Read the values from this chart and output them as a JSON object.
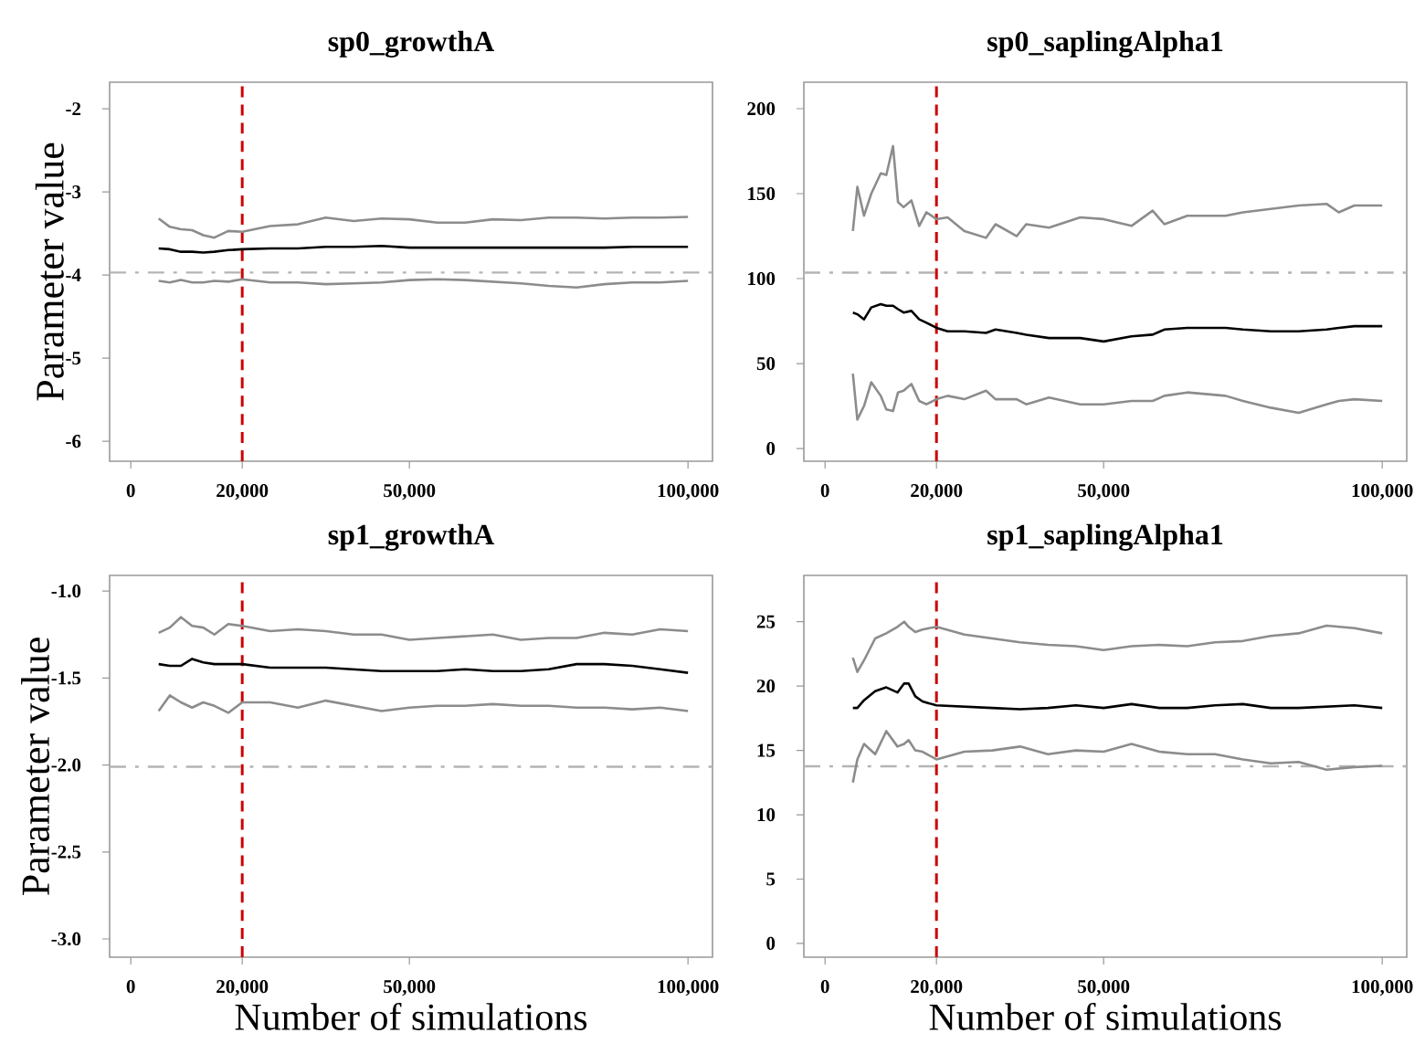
{
  "chart_data": [
    {
      "type": "line",
      "title": "sp0_growthA",
      "ylabel": "Parameter value",
      "x": [
        5000,
        7000,
        9000,
        11000,
        13000,
        15000,
        17500,
        20000,
        25000,
        30000,
        35000,
        40000,
        45000,
        50000,
        55000,
        60000,
        65000,
        70000,
        75000,
        80000,
        85000,
        90000,
        95000,
        100000
      ],
      "series": [
        {
          "color": "#8c8c8c",
          "values": [
            -3.32,
            -3.42,
            -3.45,
            -3.46,
            -3.52,
            -3.55,
            -3.47,
            -3.48,
            -3.41,
            -3.39,
            -3.31,
            -3.35,
            -3.32,
            -3.33,
            -3.37,
            -3.37,
            -3.33,
            -3.34,
            -3.31,
            -3.31,
            -3.32,
            -3.31,
            -3.31,
            -3.3
          ]
        },
        {
          "color": "#000000",
          "values": [
            -3.68,
            -3.69,
            -3.72,
            -3.72,
            -3.73,
            -3.72,
            -3.7,
            -3.69,
            -3.68,
            -3.68,
            -3.66,
            -3.66,
            -3.65,
            -3.67,
            -3.67,
            -3.67,
            -3.67,
            -3.67,
            -3.67,
            -3.67,
            -3.67,
            -3.66,
            -3.66,
            -3.66
          ]
        },
        {
          "color": "#8c8c8c",
          "values": [
            -4.07,
            -4.09,
            -4.06,
            -4.09,
            -4.09,
            -4.07,
            -4.08,
            -4.05,
            -4.09,
            -4.09,
            -4.11,
            -4.1,
            -4.09,
            -4.06,
            -4.05,
            -4.06,
            -4.08,
            -4.1,
            -4.13,
            -4.15,
            -4.11,
            -4.09,
            -4.09,
            -4.07
          ]
        }
      ],
      "xlim": [
        -3800,
        104400
      ],
      "ylim": [
        -6.24,
        -1.68
      ],
      "xticks": [
        0,
        {
          "value": 20000,
          "label": "20,000"
        },
        {
          "value": 50000,
          "label": "50,000"
        },
        {
          "value": 100000,
          "label": "100,000"
        }
      ],
      "yticks": [
        -6,
        -5,
        -4,
        -3,
        -2
      ],
      "ref_lines": [
        {
          "axis": "x",
          "value": 20000,
          "color": "#cc0000",
          "line_style": "dashed"
        },
        {
          "axis": "y",
          "value": -3.97,
          "color": "#b4b4b4",
          "line_style": "dashdot"
        }
      ]
    },
    {
      "type": "line",
      "title": "sp0_saplingAlpha1",
      "x": [
        5000,
        5800,
        7000,
        8300,
        10000,
        11000,
        12200,
        13100,
        14100,
        15500,
        16900,
        18200,
        20000,
        22000,
        25000,
        28900,
        30600,
        34400,
        36100,
        40200,
        45800,
        50000,
        55000,
        58800,
        60900,
        65000,
        71900,
        75000,
        80000,
        85000,
        90000,
        92200,
        95000,
        100000
      ],
      "series": [
        {
          "color": "#8c8c8c",
          "values": [
            128,
            154,
            137,
            150,
            162,
            161,
            178,
            145,
            142,
            146,
            131,
            139,
            135,
            136,
            128,
            124,
            132,
            125,
            132,
            130,
            136,
            135,
            131,
            140,
            132,
            137,
            137,
            139,
            141,
            143,
            144,
            139,
            143,
            143
          ]
        },
        {
          "color": "#000000",
          "values": [
            80,
            79,
            76,
            83,
            85,
            84,
            84,
            82,
            80,
            81,
            76,
            74,
            71,
            69,
            69,
            68,
            70,
            68,
            67,
            65,
            65,
            63,
            66,
            67,
            70,
            71,
            71,
            70,
            69,
            69,
            70,
            71,
            72,
            72
          ]
        },
        {
          "color": "#8c8c8c",
          "values": [
            44,
            17,
            25,
            39,
            31,
            23,
            22,
            33,
            34,
            38,
            28,
            26,
            29,
            31,
            29,
            34,
            29,
            29,
            26,
            30,
            26,
            26,
            28,
            28,
            31,
            33,
            31,
            28,
            24,
            21,
            26,
            28,
            29,
            28
          ]
        }
      ],
      "xlim": [
        -3800,
        104400
      ],
      "ylim": [
        -7.5,
        215.6
      ],
      "xticks": [
        0,
        {
          "value": 20000,
          "label": "20,000"
        },
        {
          "value": 50000,
          "label": "50,000"
        },
        {
          "value": 100000,
          "label": "100,000"
        }
      ],
      "yticks": [
        0,
        50,
        100,
        150,
        200
      ],
      "ref_lines": [
        {
          "axis": "x",
          "value": 20000,
          "color": "#cc0000",
          "line_style": "dashed"
        },
        {
          "axis": "y",
          "value": 103.5,
          "color": "#b4b4b4",
          "line_style": "dashdot"
        }
      ]
    },
    {
      "type": "line",
      "title": "sp1_growthA",
      "ylabel": "Parameter value",
      "xlabel": "Number of simulations",
      "x": [
        5000,
        7000,
        9000,
        11000,
        13000,
        15000,
        17500,
        20000,
        25000,
        30000,
        35000,
        40000,
        45000,
        50000,
        55000,
        60000,
        65000,
        70000,
        75000,
        80000,
        85000,
        90000,
        95000,
        100000
      ],
      "series": [
        {
          "color": "#8c8c8c",
          "values": [
            -1.24,
            -1.21,
            -1.15,
            -1.2,
            -1.21,
            -1.25,
            -1.19,
            -1.2,
            -1.23,
            -1.22,
            -1.23,
            -1.25,
            -1.25,
            -1.28,
            -1.27,
            -1.26,
            -1.25,
            -1.28,
            -1.27,
            -1.27,
            -1.24,
            -1.25,
            -1.22,
            -1.23
          ]
        },
        {
          "color": "#000000",
          "values": [
            -1.42,
            -1.43,
            -1.43,
            -1.39,
            -1.41,
            -1.42,
            -1.42,
            -1.42,
            -1.44,
            -1.44,
            -1.44,
            -1.45,
            -1.46,
            -1.46,
            -1.46,
            -1.45,
            -1.46,
            -1.46,
            -1.45,
            -1.42,
            -1.42,
            -1.43,
            -1.45,
            -1.47
          ]
        },
        {
          "color": "#8c8c8c",
          "values": [
            -1.69,
            -1.6,
            -1.64,
            -1.67,
            -1.64,
            -1.66,
            -1.7,
            -1.64,
            -1.64,
            -1.67,
            -1.63,
            -1.66,
            -1.69,
            -1.67,
            -1.66,
            -1.66,
            -1.65,
            -1.66,
            -1.66,
            -1.67,
            -1.67,
            -1.68,
            -1.67,
            -1.69
          ]
        }
      ],
      "xlim": [
        -3800,
        104400
      ],
      "ylim": [
        -3.105,
        -0.91
      ],
      "xticks": [
        0,
        {
          "value": 20000,
          "label": "20,000"
        },
        {
          "value": 50000,
          "label": "50,000"
        },
        {
          "value": 100000,
          "label": "100,000"
        }
      ],
      "yticks": [
        {
          "value": -3,
          "label": "-3.0"
        },
        {
          "value": -2.5,
          "label": "-2.5"
        },
        {
          "value": -2,
          "label": "-2.0"
        },
        {
          "value": -1.5,
          "label": "-1.5"
        },
        {
          "value": -1,
          "label": "-1.0"
        }
      ],
      "ref_lines": [
        {
          "axis": "x",
          "value": 20000,
          "color": "#cc0000",
          "line_style": "dashed"
        },
        {
          "axis": "y",
          "value": -2.01,
          "color": "#b4b4b4",
          "line_style": "dashdot"
        }
      ]
    },
    {
      "type": "line",
      "title": "sp1_saplingAlpha1",
      "xlabel": "Number of simulations",
      "x": [
        5000,
        5800,
        7000,
        9000,
        11000,
        13000,
        14200,
        15000,
        16200,
        17500,
        20000,
        25000,
        30000,
        35000,
        40000,
        45000,
        50000,
        55000,
        60000,
        65000,
        70000,
        75000,
        80000,
        85000,
        90000,
        95000,
        100000
      ],
      "series": [
        {
          "color": "#8c8c8c",
          "values": [
            22.2,
            21.1,
            22.0,
            23.7,
            24.1,
            24.6,
            25.0,
            24.6,
            24.2,
            24.4,
            24.6,
            24.0,
            23.7,
            23.4,
            23.2,
            23.1,
            22.8,
            23.1,
            23.2,
            23.1,
            23.4,
            23.5,
            23.9,
            24.1,
            24.7,
            24.5,
            24.1
          ]
        },
        {
          "color": "#000000",
          "values": [
            18.3,
            18.3,
            18.9,
            19.6,
            19.9,
            19.5,
            20.2,
            20.2,
            19.2,
            18.8,
            18.5,
            18.4,
            18.3,
            18.2,
            18.3,
            18.5,
            18.3,
            18.6,
            18.3,
            18.3,
            18.5,
            18.6,
            18.3,
            18.3,
            18.4,
            18.5,
            18.3
          ]
        },
        {
          "color": "#8c8c8c",
          "values": [
            12.5,
            14.3,
            15.5,
            14.7,
            16.5,
            15.3,
            15.5,
            15.8,
            15.0,
            14.9,
            14.3,
            14.9,
            15.0,
            15.3,
            14.7,
            15.0,
            14.9,
            15.5,
            14.9,
            14.7,
            14.7,
            14.3,
            14.0,
            14.1,
            13.5,
            13.7,
            13.8
          ]
        }
      ],
      "xlim": [
        -3800,
        104400
      ],
      "ylim": [
        -1.07,
        28.6
      ],
      "xticks": [
        0,
        {
          "value": 20000,
          "label": "20,000"
        },
        {
          "value": 50000,
          "label": "50,000"
        },
        {
          "value": 100000,
          "label": "100,000"
        }
      ],
      "yticks": [
        0,
        5,
        10,
        15,
        20,
        25
      ],
      "ref_lines": [
        {
          "axis": "x",
          "value": 20000,
          "color": "#cc0000",
          "line_style": "dashed"
        },
        {
          "axis": "y",
          "value": 13.76,
          "color": "#b4b4b4",
          "line_style": "dashdot"
        }
      ]
    }
  ]
}
